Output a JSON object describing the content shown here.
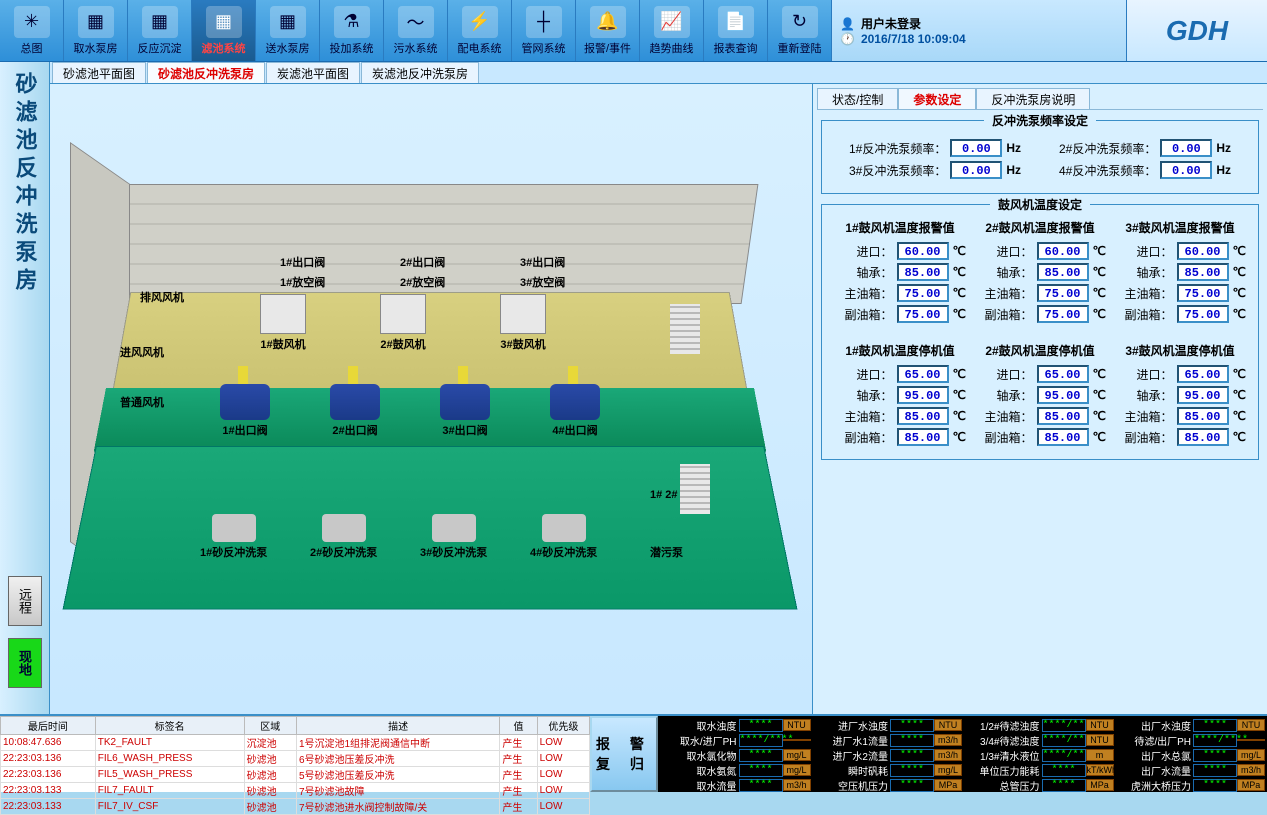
{
  "toolbar": {
    "items": [
      {
        "label": "总图",
        "icon": "✳"
      },
      {
        "label": "取水泵房",
        "icon": "▦"
      },
      {
        "label": "反应沉淀",
        "icon": "▦"
      },
      {
        "label": "滤池系统",
        "icon": "▦",
        "active": true
      },
      {
        "label": "送水泵房",
        "icon": "▦"
      },
      {
        "label": "投加系统",
        "icon": "⚗"
      },
      {
        "label": "污水系统",
        "icon": "〜"
      },
      {
        "label": "配电系统",
        "icon": "⚡"
      },
      {
        "label": "管网系统",
        "icon": "┼"
      },
      {
        "label": "报警/事件",
        "icon": "🔔"
      },
      {
        "label": "趋势曲线",
        "icon": "📈"
      },
      {
        "label": "报表查询",
        "icon": "📄"
      },
      {
        "label": "重新登陆",
        "icon": "↻"
      }
    ]
  },
  "user": {
    "status": "用户未登录",
    "datetime": "2016/7/18 10:09:04"
  },
  "logo": "GDH",
  "sidebar": {
    "title": "砂滤池反冲洗泵房",
    "remote": "远程",
    "local": "现地"
  },
  "subTabs": [
    {
      "label": "砂滤池平面图"
    },
    {
      "label": "砂滤池反冲洗泵房",
      "active": true
    },
    {
      "label": "炭滤池平面图"
    },
    {
      "label": "炭滤池反冲洗泵房"
    }
  ],
  "rightTabs": [
    {
      "label": "状态/控制"
    },
    {
      "label": "参数设定",
      "active": true
    },
    {
      "label": "反冲洗泵房说明"
    }
  ],
  "diagram": {
    "outlet_valves": [
      "1#出口阀",
      "2#出口阀",
      "3#出口阀"
    ],
    "vent_valves": [
      "1#放空阀",
      "2#放空阀",
      "3#放空阀"
    ],
    "blowers": [
      "1#鼓风机",
      "2#鼓风机",
      "3#鼓风机"
    ],
    "fans": {
      "exhaust": "排风风机",
      "intake": "进风风机",
      "ordinary": "普通风机"
    },
    "pump_outlets": [
      "1#出口阀",
      "2#出口阀",
      "3#出口阀",
      "4#出口阀"
    ],
    "pumps": [
      "1#砂反冲洗泵",
      "2#砂反冲洗泵",
      "3#砂反冲洗泵",
      "4#砂反冲洗泵"
    ],
    "sub_pump": "潜污泵",
    "markers": "1#  2#"
  },
  "freq": {
    "title": "反冲洗泵频率设定",
    "items": [
      {
        "label": "1#反冲洗泵频率：",
        "val": "0.00",
        "unit": "Hz"
      },
      {
        "label": "2#反冲洗泵频率：",
        "val": "0.00",
        "unit": "Hz"
      },
      {
        "label": "3#反冲洗泵频率：",
        "val": "0.00",
        "unit": "Hz"
      },
      {
        "label": "4#反冲洗泵频率：",
        "val": "0.00",
        "unit": "Hz"
      }
    ]
  },
  "temp": {
    "title": "鼓风机温度设定",
    "alarm_cols": [
      "1#鼓风机温度报警值",
      "2#鼓风机温度报警值",
      "3#鼓风机温度报警值"
    ],
    "stop_cols": [
      "1#鼓风机温度停机值",
      "2#鼓风机温度停机值",
      "3#鼓风机温度停机值"
    ],
    "rows": [
      "进口：",
      "轴承：",
      "主油箱：",
      "副油箱："
    ],
    "alarm_vals": [
      [
        "60.00",
        "60.00",
        "60.00"
      ],
      [
        "85.00",
        "85.00",
        "85.00"
      ],
      [
        "75.00",
        "75.00",
        "75.00"
      ],
      [
        "75.00",
        "75.00",
        "75.00"
      ]
    ],
    "stop_vals": [
      [
        "65.00",
        "65.00",
        "65.00"
      ],
      [
        "95.00",
        "95.00",
        "95.00"
      ],
      [
        "85.00",
        "85.00",
        "85.00"
      ],
      [
        "85.00",
        "85.00",
        "85.00"
      ]
    ],
    "unit": "℃"
  },
  "alarms": {
    "headers": [
      "最后时间",
      "标签名",
      "区域",
      "描述",
      "值",
      "优先级"
    ],
    "rows": [
      [
        "10:08:47.636",
        "TK2_FAULT",
        "沉淀池",
        "1号沉淀池1组排泥阀通信中断",
        "产生",
        "LOW"
      ],
      [
        "22:23:03.136",
        "FIL6_WASH_PRESS",
        "砂滤池",
        "6号砂滤池压差反冲洗",
        "产生",
        "LOW"
      ],
      [
        "22:23:03.136",
        "FIL5_WASH_PRESS",
        "砂滤池",
        "5号砂滤池压差反冲洗",
        "产生",
        "LOW"
      ],
      [
        "22:23:03.133",
        "FIL7_FAULT",
        "砂滤池",
        "7号砂滤池故障",
        "产生",
        "LOW"
      ],
      [
        "22:23:03.133",
        "FIL7_IV_CSF",
        "砂滤池",
        "7号砂滤池进水阀控制故障/关",
        "产生",
        "LOW"
      ]
    ]
  },
  "alarmBtn": {
    "l1": "报 警",
    "l2": "复 归"
  },
  "meters": [
    {
      "n": "取水浊度",
      "v": "****",
      "u": "NTU"
    },
    {
      "n": "进厂水浊度",
      "v": "****",
      "u": "NTU"
    },
    {
      "n": "1/2#待滤浊度",
      "v": "****/****",
      "u": "NTU"
    },
    {
      "n": "出厂水浊度",
      "v": "****",
      "u": "NTU"
    },
    {
      "n": "取水/进厂PH",
      "v": "****/****",
      "u": ""
    },
    {
      "n": "进厂水1流量",
      "v": "****",
      "u": "m3/h"
    },
    {
      "n": "3/4#待滤浊度",
      "v": "****/****",
      "u": "NTU"
    },
    {
      "n": "待滤/出厂PH",
      "v": "****/****",
      "u": ""
    },
    {
      "n": "取水氯化物",
      "v": "****",
      "u": "mg/L"
    },
    {
      "n": "进厂水2流量",
      "v": "****",
      "u": "m3/h"
    },
    {
      "n": "1/3#清水液位",
      "v": "****/****",
      "u": "m"
    },
    {
      "n": "出厂水总氯",
      "v": "****",
      "u": "mg/L"
    },
    {
      "n": "取水氨氮",
      "v": "****",
      "u": "mg/L"
    },
    {
      "n": "瞬时矾耗",
      "v": "****",
      "u": "mg/L"
    },
    {
      "n": "单位压力能耗",
      "v": "****",
      "u": "kT/kWh"
    },
    {
      "n": "出厂水流量",
      "v": "****",
      "u": "m3/h"
    },
    {
      "n": "取水流量",
      "v": "****",
      "u": "m3/h"
    },
    {
      "n": "空压机压力",
      "v": "****",
      "u": "MPa"
    },
    {
      "n": "总管压力",
      "v": "****",
      "u": "MPa"
    },
    {
      "n": "虎洲大桥压力",
      "v": "****",
      "u": "MPa"
    }
  ],
  "colors": {
    "accent": "#3a8fc8",
    "value": "#0000d0",
    "alarm": "#c00",
    "meter_val": "#0f0"
  }
}
